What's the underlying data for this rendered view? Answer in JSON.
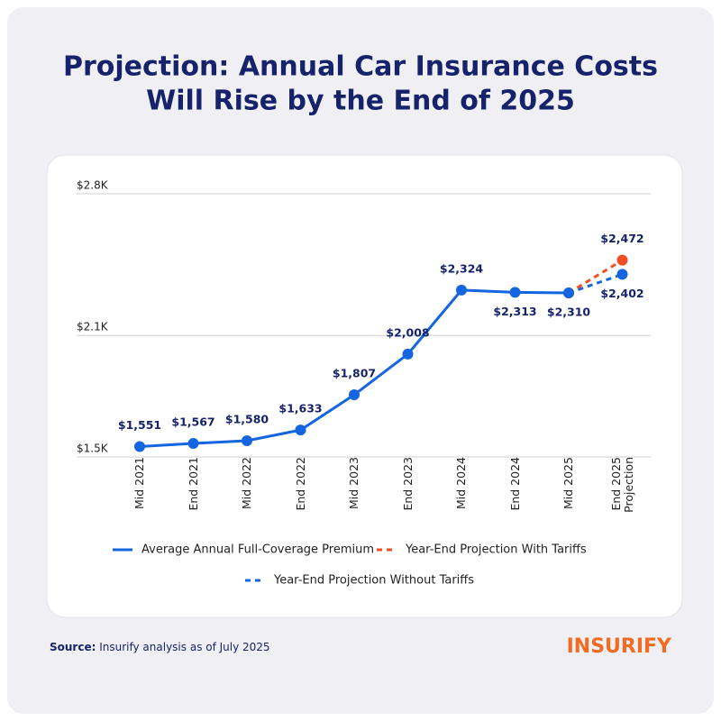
{
  "chart_data": {
    "type": "line",
    "title": [
      "Projection: Annual Car Insurance Costs",
      "Will Rise by the End of 2025"
    ],
    "categories": [
      "Mid 2021",
      "End 2021",
      "Mid 2022",
      "End 2022",
      "Mid 2023",
      "End 2023",
      "Mid 2024",
      "End 2024",
      "Mid 2025",
      "End 2025 Projection"
    ],
    "series": [
      {
        "name": "Average Annual Full-Coverage Premium",
        "color": "#1565e0",
        "dash": false,
        "values": [
          1551,
          1567,
          1580,
          1633,
          1807,
          2008,
          2324,
          2313,
          2310,
          null
        ],
        "value_labels": [
          "$1,551",
          "$1,567",
          "$1,580",
          "$1,633",
          "$1,807",
          "$2,008",
          "$2,324",
          "$2,313",
          "$2,310",
          null
        ]
      },
      {
        "name": "Year-End Projection With Tariffs",
        "color": "#f04e23",
        "dash": true,
        "values": [
          null,
          null,
          null,
          null,
          null,
          null,
          null,
          null,
          2310,
          2472
        ],
        "value_labels": [
          null,
          null,
          null,
          null,
          null,
          null,
          null,
          null,
          null,
          "$2,472"
        ]
      },
      {
        "name": "Year-End Projection Without Tariffs",
        "color": "#1565e0",
        "dash": true,
        "values": [
          null,
          null,
          null,
          null,
          null,
          null,
          null,
          null,
          2310,
          2402
        ],
        "value_labels": [
          null,
          null,
          null,
          null,
          null,
          null,
          null,
          null,
          null,
          "$2,402"
        ]
      }
    ],
    "ylim": [
      1500,
      2800
    ],
    "yticks": [
      {
        "value": 1500,
        "label": "$1.5K"
      },
      {
        "value": 2100,
        "label": "$2.1K"
      },
      {
        "value": 2800,
        "label": "$2.8K"
      }
    ],
    "grid": true
  },
  "footer": {
    "source_label": "Source:",
    "source_text": "Insurify analysis as of July 2025",
    "logo": "INSURIFY"
  }
}
